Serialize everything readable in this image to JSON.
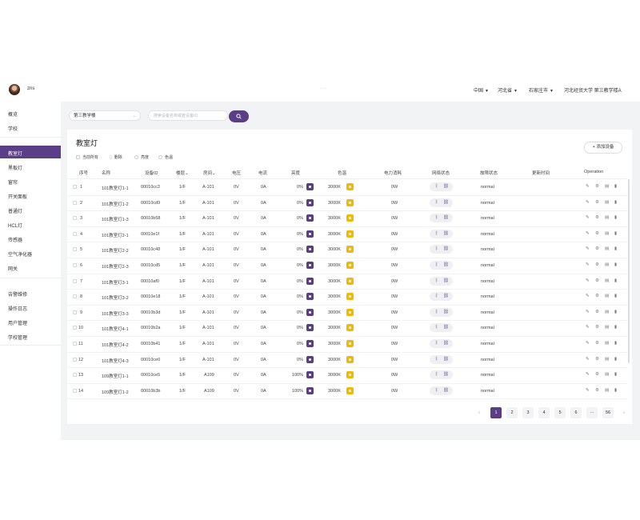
{
  "header": {
    "username": "zns",
    "dots": "···",
    "country": "中国",
    "province": "河北省",
    "city": "石家庄市",
    "campus": "河北经贸大学 第三教学楼A"
  },
  "sidebar": {
    "items": [
      "概览",
      "学校",
      "教室灯",
      "黑板灯",
      "窗帘",
      "开关面板",
      "普通灯",
      "HCL灯",
      "传感器",
      "空气净化器",
      "网关",
      "告警维修",
      "操作日志",
      "用户管理",
      "学校管理"
    ],
    "active": "教室灯"
  },
  "filters": {
    "building": "第三教学楼",
    "search_placeholder": "搜索设备名称或者设备ID"
  },
  "card": {
    "title": "教室灯",
    "add_button": "+ 添加设备",
    "toolbar": {
      "select_all": "当前所有",
      "delete": "删除",
      "brightness": "亮度",
      "color_temp": "色温"
    }
  },
  "table": {
    "headers": [
      "序号",
      "名称",
      "设备ID",
      "楼层",
      "房间",
      "电压",
      "电流",
      "亮度",
      "色温",
      "电力消耗",
      "网络状态",
      "故障状态",
      "更新时间",
      "Operation"
    ],
    "rows": [
      [
        "1",
        "101教室灯1-1",
        "00010cc3",
        "1/F",
        "A-101",
        "0V",
        "0A",
        "0%",
        "3000K",
        "0W",
        "normal"
      ],
      [
        "2",
        "101教室灯1-2",
        "00010cd9",
        "1/F",
        "A-101",
        "0V",
        "0A",
        "0%",
        "3000K",
        "0W",
        "normal"
      ],
      [
        "3",
        "101教室灯1-3",
        "00010b58",
        "1/F",
        "A-101",
        "0V",
        "0A",
        "0%",
        "3000K",
        "0W",
        "normal"
      ],
      [
        "4",
        "101教室灯2-1",
        "00010e1f",
        "1/F",
        "A-101",
        "0V",
        "0A",
        "0%",
        "3000K",
        "0W",
        "normal"
      ],
      [
        "5",
        "101教室灯2-2",
        "00010c48",
        "1/F",
        "A-101",
        "0V",
        "0A",
        "0%",
        "3000K",
        "0W",
        "normal"
      ],
      [
        "6",
        "101教室灯2-3",
        "00010cd5",
        "1/F",
        "A-101",
        "0V",
        "0A",
        "0%",
        "3000K",
        "0W",
        "normal"
      ],
      [
        "7",
        "101教室灯3-1",
        "00010af0",
        "1/F",
        "A-101",
        "0V",
        "0A",
        "0%",
        "3000K",
        "0W",
        "normal"
      ],
      [
        "8",
        "101教室灯3-2",
        "00010e18",
        "1/F",
        "A-101",
        "0V",
        "0A",
        "0%",
        "3000K",
        "0W",
        "normal"
      ],
      [
        "9",
        "101教室灯3-3",
        "00010b3d",
        "1/F",
        "A-101",
        "0V",
        "0A",
        "0%",
        "3000K",
        "0W",
        "normal"
      ],
      [
        "10",
        "101教室灯4-1",
        "00010b2a",
        "1/F",
        "A-101",
        "0V",
        "0A",
        "0%",
        "3000K",
        "0W",
        "normal"
      ],
      [
        "11",
        "101教室灯4-2",
        "00010b41",
        "1/F",
        "A-101",
        "0V",
        "0A",
        "0%",
        "3000K",
        "0W",
        "normal"
      ],
      [
        "12",
        "101教室灯4-3",
        "00010ce0",
        "1/F",
        "A-101",
        "0V",
        "0A",
        "0%",
        "3000K",
        "0W",
        "normal"
      ],
      [
        "13",
        "109教室灯1-1",
        "00010ce5",
        "1/F",
        "A109",
        "0V",
        "0A",
        "100%",
        "3000K",
        "0W",
        "normal"
      ],
      [
        "14",
        "109教室灯1-2",
        "00010b3b",
        "1/F",
        "A109",
        "0V",
        "0A",
        "100%",
        "3000K",
        "0W",
        "normal"
      ]
    ]
  },
  "pagination": {
    "prev": "‹",
    "pages": [
      "1",
      "2",
      "3",
      "4",
      "5",
      "6"
    ],
    "ellipsis": "···",
    "last": "56",
    "next": "›",
    "current": "1"
  },
  "colors": {
    "accent": "#5a3f86",
    "color_temp_icon": "#f5b800"
  }
}
